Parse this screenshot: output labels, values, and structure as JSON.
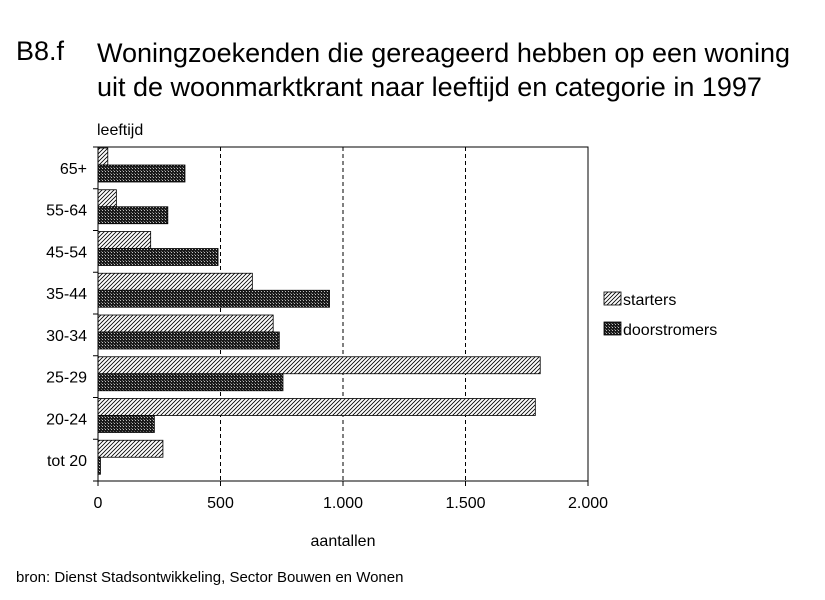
{
  "figure": {
    "number": "B8.f",
    "title_line1": "Woningzoekenden die gereageerd hebben op een woning",
    "title_line2": "uit de woonmarktkrant naar leeftijd en categorie in 1997",
    "source": "bron: Dienst Stadsontwikkeling, Sector Bouwen en Wonen"
  },
  "chart_data": {
    "type": "bar",
    "orientation": "horizontal",
    "title": "Woningzoekenden die gereageerd hebben op een woning uit de woonmarktkrant naar leeftijd en categorie in 1997",
    "ylabel": "leeftijd",
    "xlabel": "aantallen",
    "categories": [
      "65+",
      "55-64",
      "45-54",
      "35-44",
      "30-34",
      "25-29",
      "20-24",
      "tot 20"
    ],
    "series": [
      {
        "name": "starters",
        "values": [
          40,
          75,
          215,
          630,
          715,
          1805,
          1785,
          265
        ],
        "pattern": "diagonal-hatch"
      },
      {
        "name": "doorstromers",
        "values": [
          355,
          285,
          490,
          945,
          740,
          755,
          230,
          10
        ],
        "pattern": "dark-crosshatch"
      }
    ],
    "xlim": [
      0,
      2000
    ],
    "xticks": [
      0,
      500,
      1000,
      1500,
      2000
    ],
    "xtick_labels": [
      "0",
      "500",
      "1.000",
      "1.500",
      "2.000"
    ],
    "grid": "vertical dashed",
    "legend_position": "right"
  }
}
